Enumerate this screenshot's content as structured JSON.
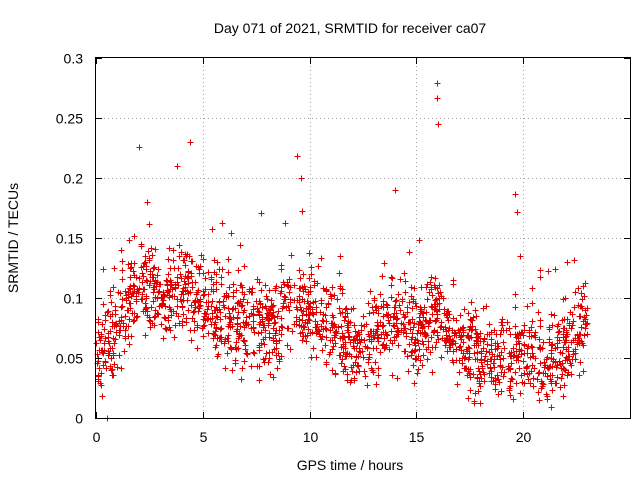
{
  "chart_data": {
    "type": "scatter",
    "title": "Day 071 of 2021, SRMTID for receiver ca07",
    "xlabel": "GPS time / hours",
    "ylabel": "SRMTID / TECUs",
    "xlim": [
      0,
      25
    ],
    "ylim": [
      0,
      0.3
    ],
    "xticks": [
      0,
      5,
      10,
      15,
      20
    ],
    "xtick_labels": [
      "0",
      "5",
      "10",
      "15",
      "20"
    ],
    "yticks": [
      0,
      0.05,
      0.1,
      0.15,
      0.2,
      0.25,
      0.3
    ],
    "ytick_labels": [
      "0",
      "0.05",
      "0.1",
      "0.15",
      "0.2",
      "0.25",
      "0.3"
    ],
    "grid": true,
    "marker": "plus",
    "color": "#e00000",
    "x_data_range": [
      0,
      23
    ],
    "trend_hours": [
      0,
      1,
      2,
      3,
      4,
      5,
      6,
      7,
      8,
      9,
      10,
      11,
      12,
      13,
      14,
      15,
      16,
      17,
      18,
      19,
      20,
      21,
      22,
      23
    ],
    "trend_values": [
      0.05,
      0.08,
      0.11,
      0.1,
      0.11,
      0.1,
      0.085,
      0.08,
      0.07,
      0.095,
      0.09,
      0.075,
      0.06,
      0.065,
      0.08,
      0.07,
      0.085,
      0.065,
      0.045,
      0.05,
      0.06,
      0.045,
      0.06,
      0.08
    ],
    "peaks": [
      {
        "x": 2.0,
        "y": 0.226
      },
      {
        "x": 2.4,
        "y": 0.18
      },
      {
        "x": 3.8,
        "y": 0.21
      },
      {
        "x": 4.4,
        "y": 0.23
      },
      {
        "x": 9.4,
        "y": 0.218
      },
      {
        "x": 9.6,
        "y": 0.2
      },
      {
        "x": 14.0,
        "y": 0.19
      },
      {
        "x": 15.95,
        "y": 0.279
      },
      {
        "x": 15.98,
        "y": 0.267
      },
      {
        "x": 16.0,
        "y": 0.245
      },
      {
        "x": 19.6,
        "y": 0.187
      },
      {
        "x": 19.7,
        "y": 0.172
      },
      {
        "x": 22.4,
        "y": 0.132
      },
      {
        "x": 0.5,
        "y": 0.0
      }
    ]
  }
}
